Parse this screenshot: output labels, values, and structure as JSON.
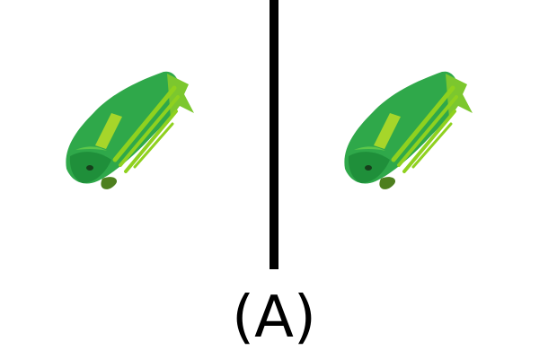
{
  "option_label": "(A)",
  "images": [
    {
      "name": "left-fish",
      "icon": "fish-3d-render"
    },
    {
      "name": "right-fish",
      "icon": "fish-3d-render"
    }
  ],
  "colors": {
    "background": "#ffffff",
    "divider": "#000000",
    "fish_body": "#2fa84a",
    "fish_dark": "#1f8f3a",
    "fish_stripe": "#8fd11f",
    "fish_fin": "#7cc72e"
  }
}
